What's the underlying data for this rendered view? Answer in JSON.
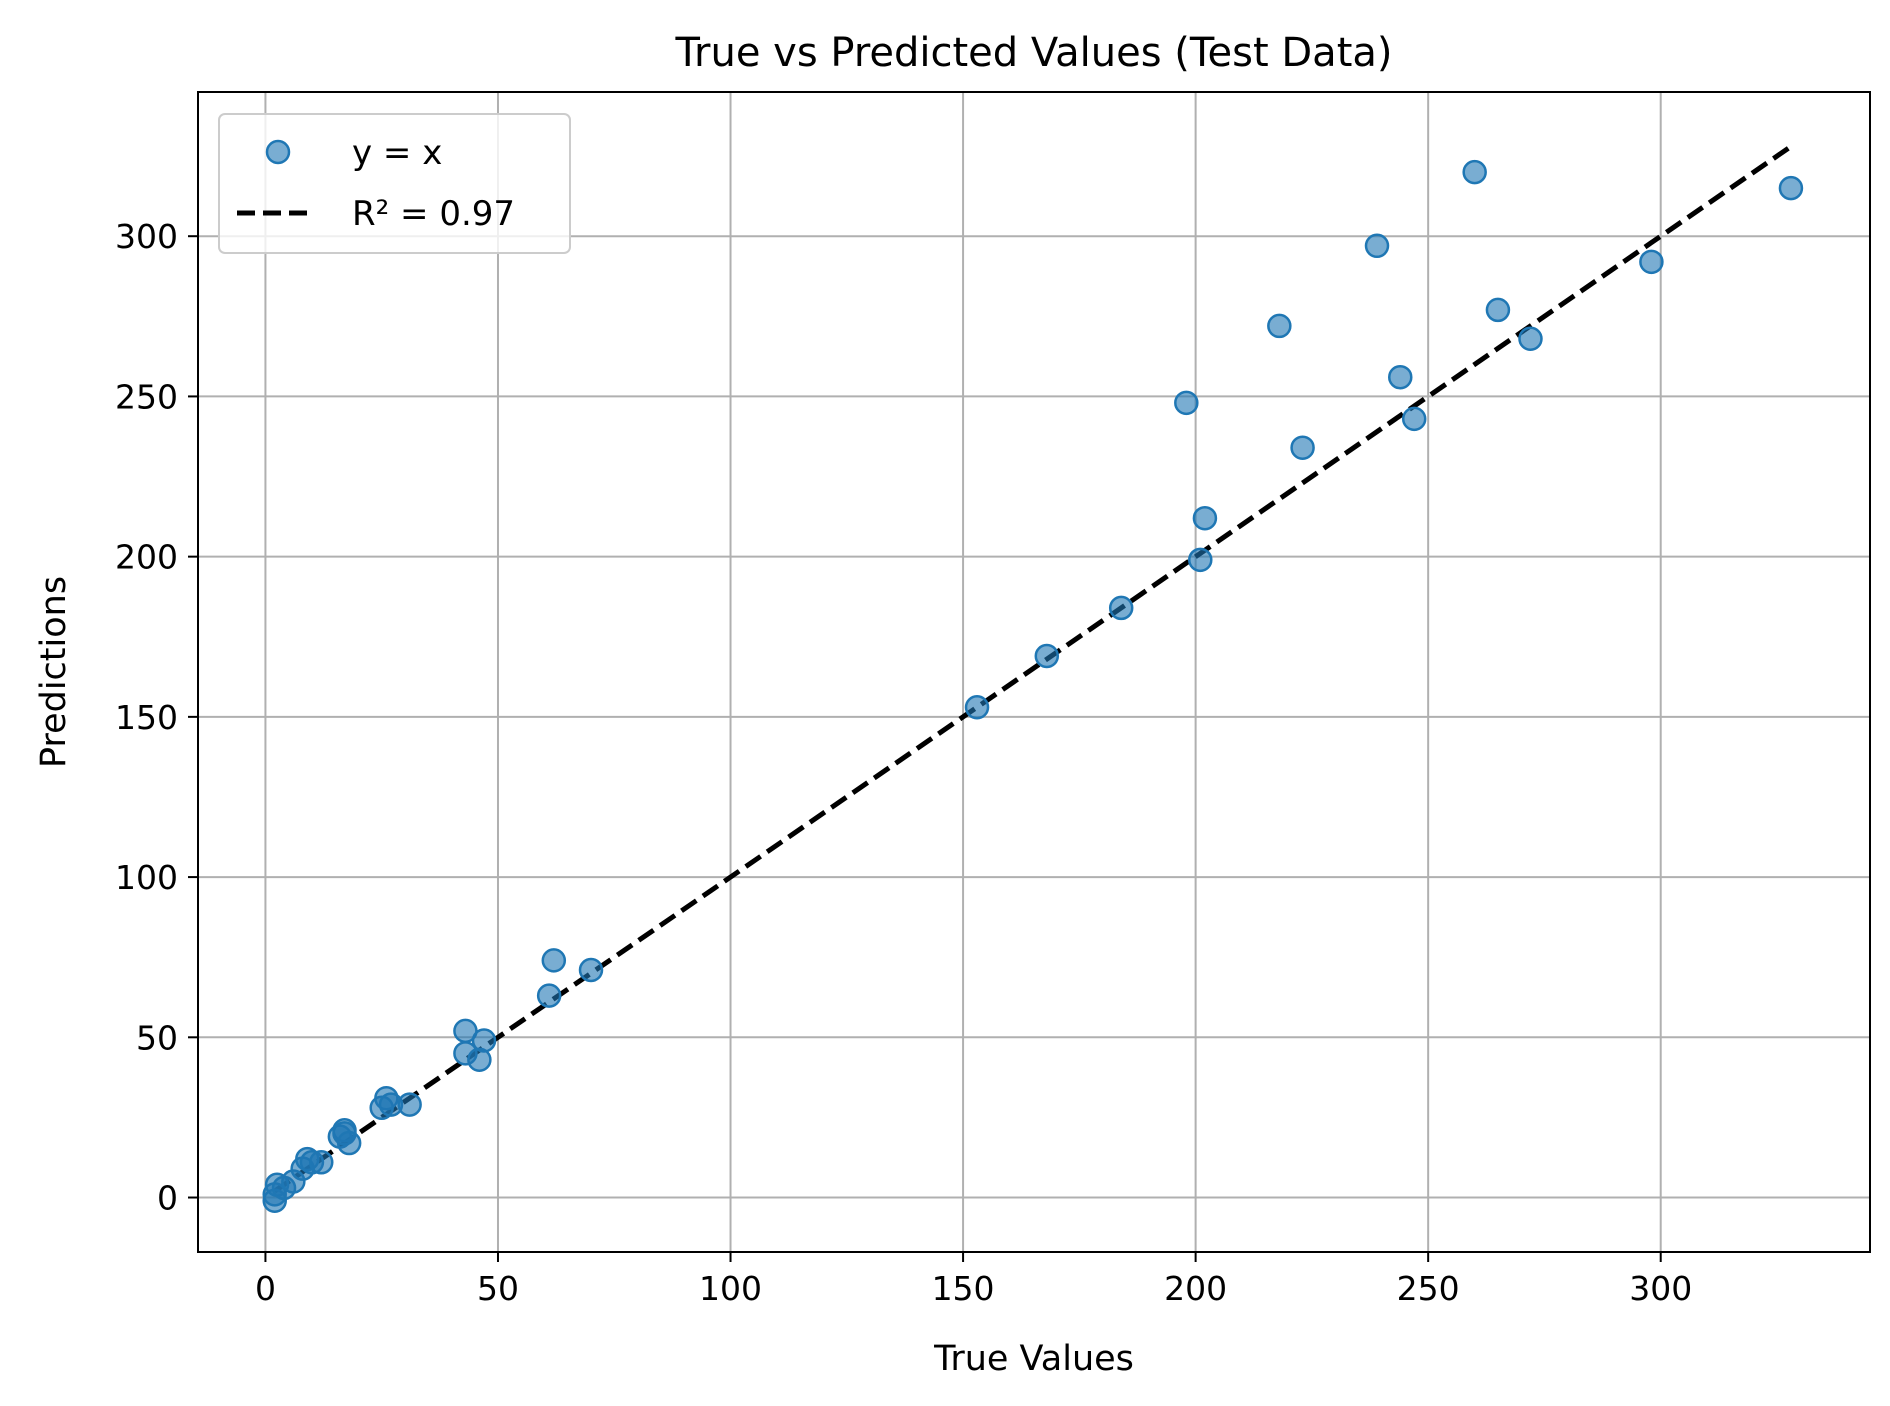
{
  "chart_data": {
    "type": "scatter",
    "title": "True vs Predicted Values (Test Data)",
    "xlabel": "True Values",
    "ylabel": "Predictions",
    "xlim": [
      -14.5,
      345
    ],
    "ylim": [
      -17,
      345
    ],
    "xticks": [
      0,
      50,
      100,
      150,
      200,
      250,
      300
    ],
    "yticks": [
      0,
      50,
      100,
      150,
      200,
      250,
      300
    ],
    "grid": true,
    "legend_position": "upper-left",
    "series": [
      {
        "name": "y = x",
        "kind": "scatter",
        "color": "#1f77b4",
        "points": [
          [
            2,
            -1
          ],
          [
            2,
            1
          ],
          [
            2.5,
            4
          ],
          [
            4,
            3
          ],
          [
            6,
            5
          ],
          [
            8,
            9
          ],
          [
            9,
            12
          ],
          [
            10,
            11
          ],
          [
            12,
            11
          ],
          [
            16,
            19
          ],
          [
            17,
            21
          ],
          [
            17,
            20
          ],
          [
            18,
            17
          ],
          [
            25,
            28
          ],
          [
            26,
            31
          ],
          [
            27,
            29
          ],
          [
            31,
            29
          ],
          [
            43,
            52
          ],
          [
            43,
            45
          ],
          [
            46,
            43
          ],
          [
            47,
            49
          ],
          [
            61,
            63
          ],
          [
            62,
            74
          ],
          [
            70,
            71
          ],
          [
            153,
            153
          ],
          [
            168,
            169
          ],
          [
            184,
            184
          ],
          [
            198,
            248
          ],
          [
            201,
            199
          ],
          [
            202,
            212
          ],
          [
            218,
            272
          ],
          [
            223,
            234
          ],
          [
            239,
            297
          ],
          [
            244,
            256
          ],
          [
            247,
            243
          ],
          [
            260,
            320
          ],
          [
            265,
            277
          ],
          [
            272,
            268
          ],
          [
            298,
            292
          ],
          [
            328,
            315
          ]
        ]
      },
      {
        "name": "R² = 0.97",
        "kind": "line",
        "style": "dashed",
        "color": "#000000",
        "x": [
          2,
          328
        ],
        "y": [
          2,
          328
        ]
      }
    ]
  },
  "colors": {
    "point_fill": "#1f77b4",
    "grid": "#b0b0b0",
    "axes": "#000000",
    "line": "#000000"
  }
}
